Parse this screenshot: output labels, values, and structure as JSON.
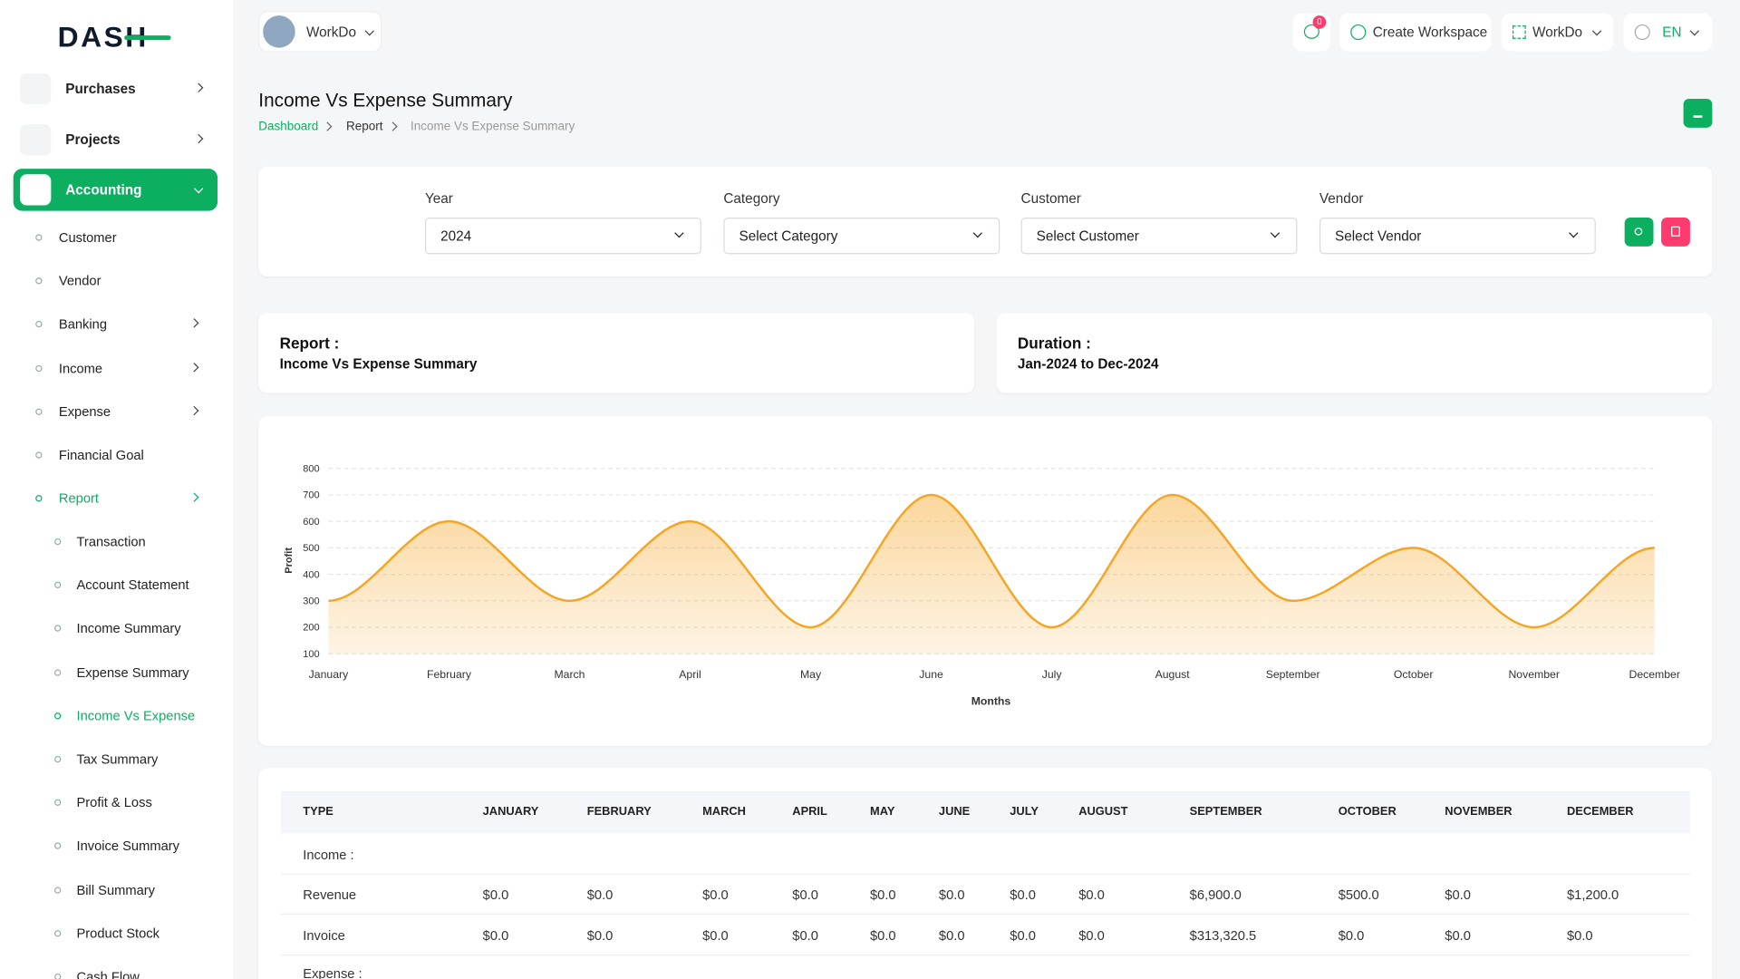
{
  "brand": "DASH",
  "header": {
    "workspace": "WorkDo",
    "notifications": "0",
    "create_workspace": "Create Workspace",
    "user_workspace": "WorkDo",
    "language": "EN"
  },
  "sidebar": {
    "menu": [
      "Purchases",
      "Projects",
      "Accounting"
    ],
    "accounting": [
      "Customer",
      "Vendor",
      "Banking",
      "Income",
      "Expense",
      "Financial Goal",
      "Report"
    ],
    "report": [
      "Transaction",
      "Account Statement",
      "Income Summary",
      "Expense Summary",
      "Income Vs Expense",
      "Tax Summary",
      "Profit & Loss",
      "Invoice Summary",
      "Bill Summary",
      "Product Stock",
      "Cash Flow"
    ]
  },
  "page": {
    "title": "Income Vs Expense Summary",
    "breadcrumb": [
      "Dashboard",
      "Report",
      "Income Vs Expense Summary"
    ]
  },
  "filters": [
    {
      "label": "Year",
      "value": "2024"
    },
    {
      "label": "Category",
      "value": "Select Category"
    },
    {
      "label": "Customer",
      "value": "Select Customer"
    },
    {
      "label": "Vendor",
      "value": "Select Vendor"
    }
  ],
  "info": [
    {
      "label": "Report :",
      "value": "Income Vs Expense Summary"
    },
    {
      "label": "Duration :",
      "value": "Jan-2024 to Dec-2024"
    }
  ],
  "report_chart": {
    "type": "area",
    "y_label": "Profit",
    "x_label": "Months",
    "categories": [
      "January",
      "February",
      "March",
      "April",
      "May",
      "June",
      "July",
      "August",
      "September",
      "October",
      "November",
      "December"
    ],
    "values": [
      300,
      600,
      300,
      600,
      200,
      700,
      200,
      700,
      300,
      500,
      200,
      500
    ],
    "ylim": [
      100,
      800
    ],
    "yticks": [
      100,
      200,
      300,
      400,
      500,
      600,
      700,
      800
    ],
    "grid": true,
    "color": "#f5a524"
  },
  "table": {
    "header": [
      "TYPE",
      "JANUARY",
      "FEBRUARY",
      "MARCH",
      "APRIL",
      "MAY",
      "JUNE",
      "JULY",
      "AUGUST",
      "SEPTEMBER",
      "OCTOBER",
      "NOVEMBER",
      "DECEMBER"
    ],
    "rows": [
      [
        "Income :"
      ],
      [
        "Revenue",
        "$0.0",
        "$0.0",
        "$0.0",
        "$0.0",
        "$0.0",
        "$0.0",
        "$0.0",
        "$0.0",
        "$6,900.0",
        "$500.0",
        "$0.0",
        "$1,200.0"
      ],
      [
        "Invoice",
        "$0.0",
        "$0.0",
        "$0.0",
        "$0.0",
        "$0.0",
        "$0.0",
        "$0.0",
        "$0.0",
        "$313,320.5",
        "$0.0",
        "$0.0",
        "$0.0"
      ],
      [
        "Expense :"
      ]
    ]
  }
}
